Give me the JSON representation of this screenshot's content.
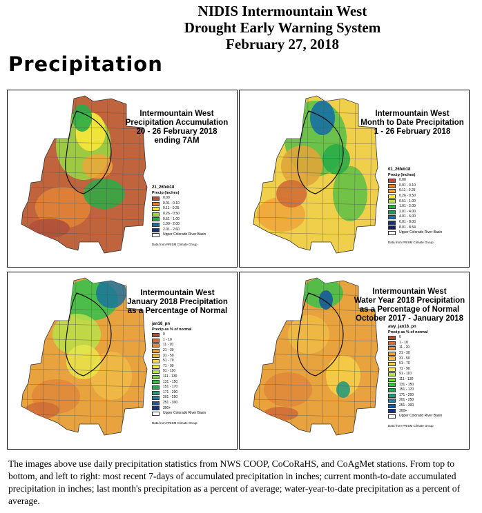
{
  "header": {
    "line1": "NIDIS Intermountain West",
    "line2": "Drought Early Warning System",
    "line3": "February 27, 2018"
  },
  "section_title": "Precipitation",
  "colors": {
    "accum": [
      "#b0523a",
      "#e08236",
      "#f8e63a",
      "#9ad443",
      "#2aac47",
      "#176fa3",
      "#17337f"
    ],
    "pct": [
      "#b0523a",
      "#d06e36",
      "#e08a3a",
      "#e8a23e",
      "#f0bb44",
      "#f5d34a",
      "#e8e84a",
      "#b8e04a",
      "#7cd24a",
      "#3cc04a",
      "#2aa850",
      "#2a9a7a",
      "#2a7a98",
      "#1a5a98",
      "#17337f"
    ]
  },
  "panels": [
    {
      "title_lines": [
        "Intermountain West",
        "Precipitation Accumulation",
        "20 - 26 February 2018",
        "ending 7AM"
      ],
      "legend_id": "21_26feb18",
      "legend_head": "Precip (inches)",
      "classes": [
        "0.00",
        "0.01 - 0.10",
        "0.11 - 0.25",
        "0.26 - 0.50",
        "0.51 - 1.00",
        "1.00 - 2.00",
        "2.01 - 2.60"
      ],
      "basin_label": "Upper Colorado River Basin",
      "source": "Data from PRISM Climate Group"
    },
    {
      "title_lines": [
        "Intermountain West",
        "Month to Date Precipitation",
        "1 - 26 February 2018"
      ],
      "legend_id": "01_26feb18",
      "legend_head": "Precip (inches)",
      "classes": [
        "0.00",
        "0.01 - 0.10",
        "0.11 - 0.25",
        "0.26 - 0.50",
        "0.51 - 1.00",
        "1.01 - 2.00",
        "2.01 - 4.00",
        "4.01 - 6.00",
        "6.01 - 8.00",
        "8.01 - 8.54"
      ],
      "basin_label": "Upper Colorado River Basin",
      "source": "Data from PRISM Climate Group"
    },
    {
      "title_lines": [
        "Intermountain West",
        "January 2018 Precipitation",
        "as a Percentage of Normal"
      ],
      "legend_id": "jan18_pn",
      "legend_head": "Precip as % of normal",
      "classes": [
        "0",
        "1 - 10",
        "11 - 20",
        "21 - 30",
        "31 - 50",
        "51 - 70",
        "71 - 90",
        "91 - 110",
        "111 - 130",
        "131 - 150",
        "151 - 170",
        "171 - 200",
        "201 - 250",
        "251 - 300",
        "300+"
      ],
      "basin_label": "Upper Colorado River Basin",
      "source": "Data from PRISM Climate Group"
    },
    {
      "title_lines": [
        "Intermountain West",
        "Water Year 2018 Precipitation",
        "as a Percentage of Normal",
        "October 2017 - January 2018"
      ],
      "legend_id": "awy_jan18_pn",
      "legend_head": "Precip as % of normal",
      "classes": [
        "0",
        "1 - 10",
        "11 - 20",
        "21 - 30",
        "31 - 50",
        "51 - 70",
        "71 - 90",
        "91 - 110",
        "111 - 130",
        "131 - 150",
        "151 - 170",
        "171 - 200",
        "201 - 250",
        "251 - 300",
        "300+"
      ],
      "basin_label": "Upper Colorado River Basin",
      "source": "Data from PRISM Climate Group"
    }
  ],
  "footer_text": "The images above use daily precipitation statistics from NWS COOP, CoCoRaHS, and CoAgMet stations. From top to bottom, and left to right: most recent 7-days of accumulated precipitation in inches; current month-to-date accumulated precipitation in inches; last month's precipitation as a percent of average; water-year-to-date precipitation as a percent of average."
}
